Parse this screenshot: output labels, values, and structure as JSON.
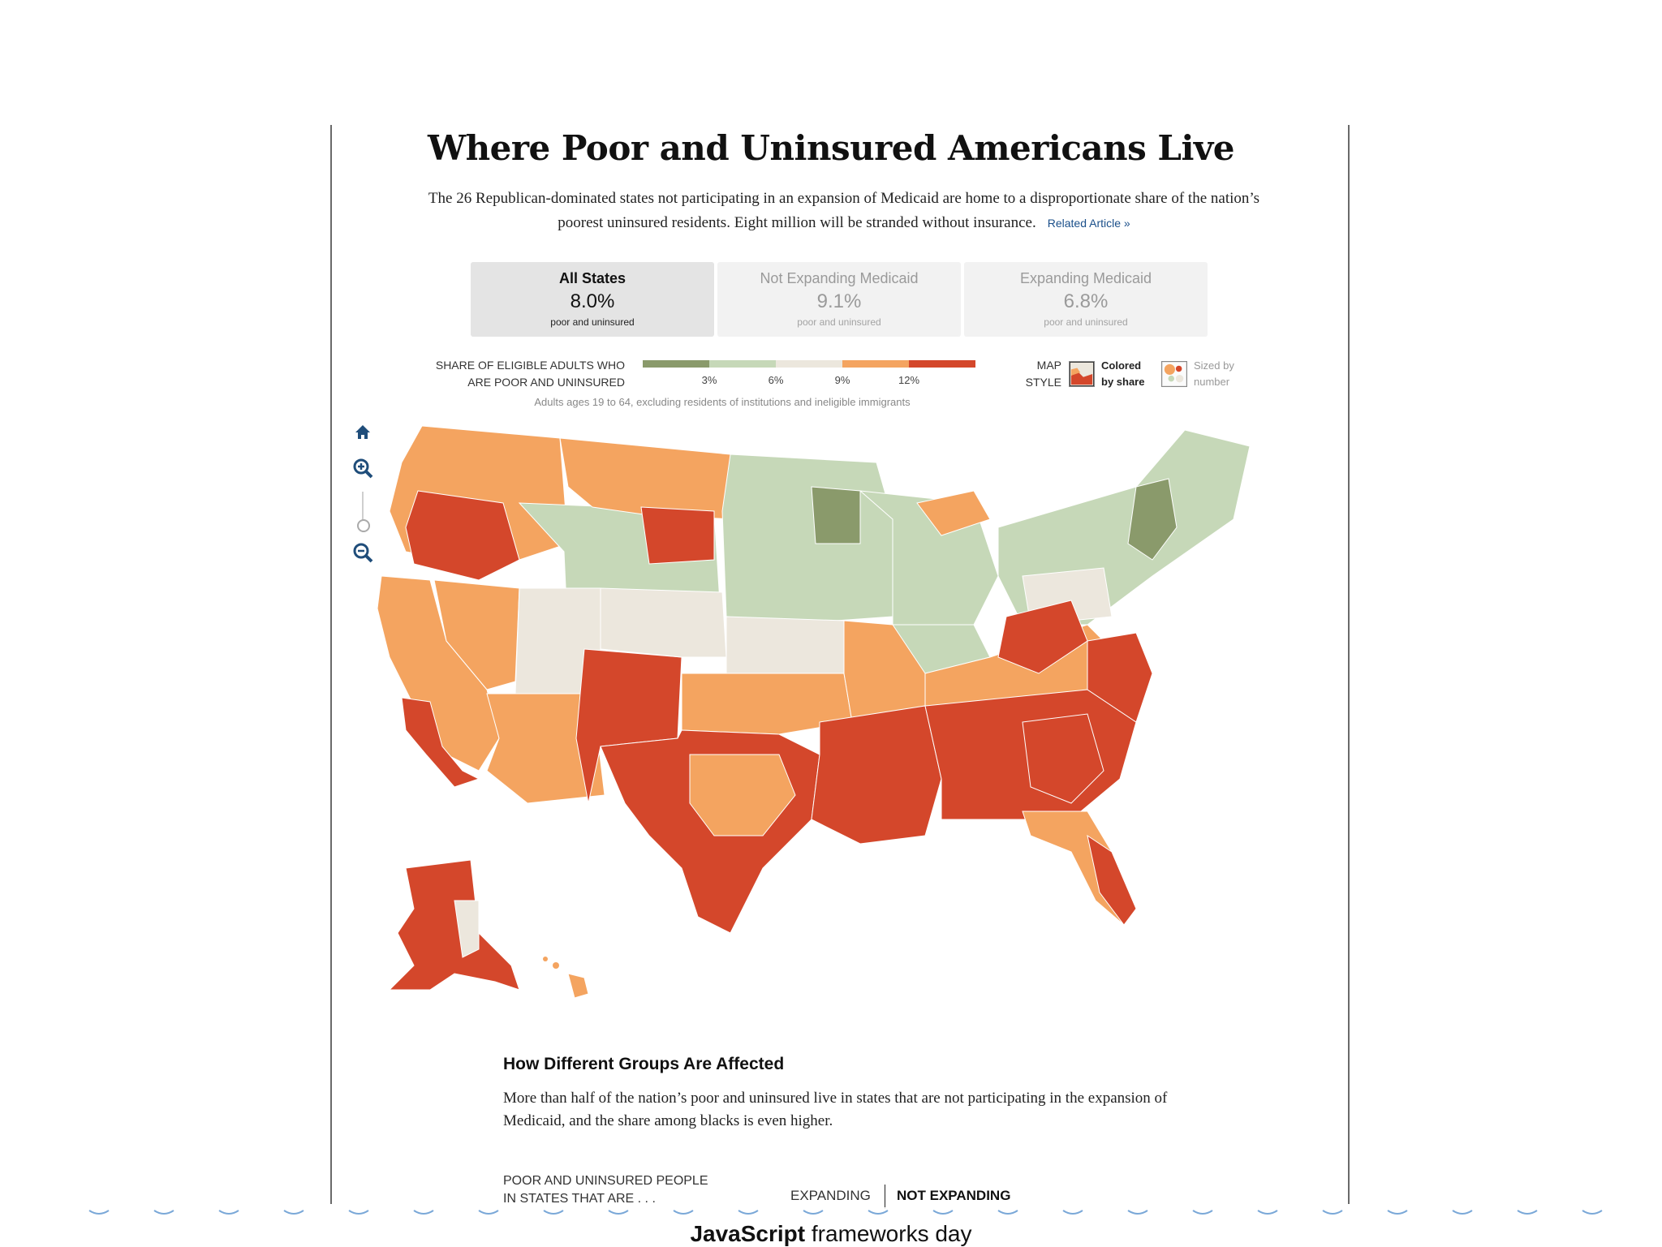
{
  "header": {
    "title": "Where Poor and Uninsured Americans Live",
    "intro": "The 26 Republican-dominated states not participating in an expansion of Medicaid are home to a disproportionate share of the nation’s poorest uninsured residents. Eight million will be stranded without insurance.",
    "related_link": "Related Article »"
  },
  "tabs": [
    {
      "label": "All States",
      "value": "8.0%",
      "sub": "poor and uninsured",
      "active": true
    },
    {
      "label": "Not Expanding Medicaid",
      "value": "9.1%",
      "sub": "poor and uninsured",
      "active": false
    },
    {
      "label": "Expanding Medicaid",
      "value": "6.8%",
      "sub": "poor and uninsured",
      "active": false
    }
  ],
  "legend": {
    "label_line1": "SHARE OF ELIGIBLE ADULTS WHO",
    "label_line2": "ARE POOR AND UNINSURED",
    "ticks": [
      "3%",
      "6%",
      "9%",
      "12%"
    ],
    "colors": [
      "#8a9a6b",
      "#c6d8b8",
      "#ece7dd",
      "#f4a460",
      "#d4472b"
    ],
    "note": "Adults ages 19 to 64, excluding residents of institutions and ineligible immigrants"
  },
  "map_style": {
    "label_line1": "MAP",
    "label_line2": "STYLE",
    "option_share_line1": "Colored",
    "option_share_line2": "by share",
    "option_number_line1": "Sized by",
    "option_number_line2": "number",
    "selected": "share"
  },
  "zoom_controls": {
    "home_icon": "home-icon",
    "zoom_in_icon": "zoom-in-icon",
    "zoom_out_icon": "zoom-out-icon"
  },
  "section": {
    "title": "How Different Groups Are Affected",
    "text": "More than half of the nation’s poor and uninsured live in states that are not participating in the expansion of Medicaid, and the share among blacks is even higher.",
    "sub_label_line1": "POOR AND UNINSURED PEOPLE",
    "sub_label_line2": "IN STATES THAT ARE . . .",
    "toggle_expanding": "EXPANDING",
    "toggle_not_expanding": "NOT EXPANDING"
  },
  "footer": {
    "brand_bold": "JavaScript",
    "brand_rest": " frameworks day"
  }
}
